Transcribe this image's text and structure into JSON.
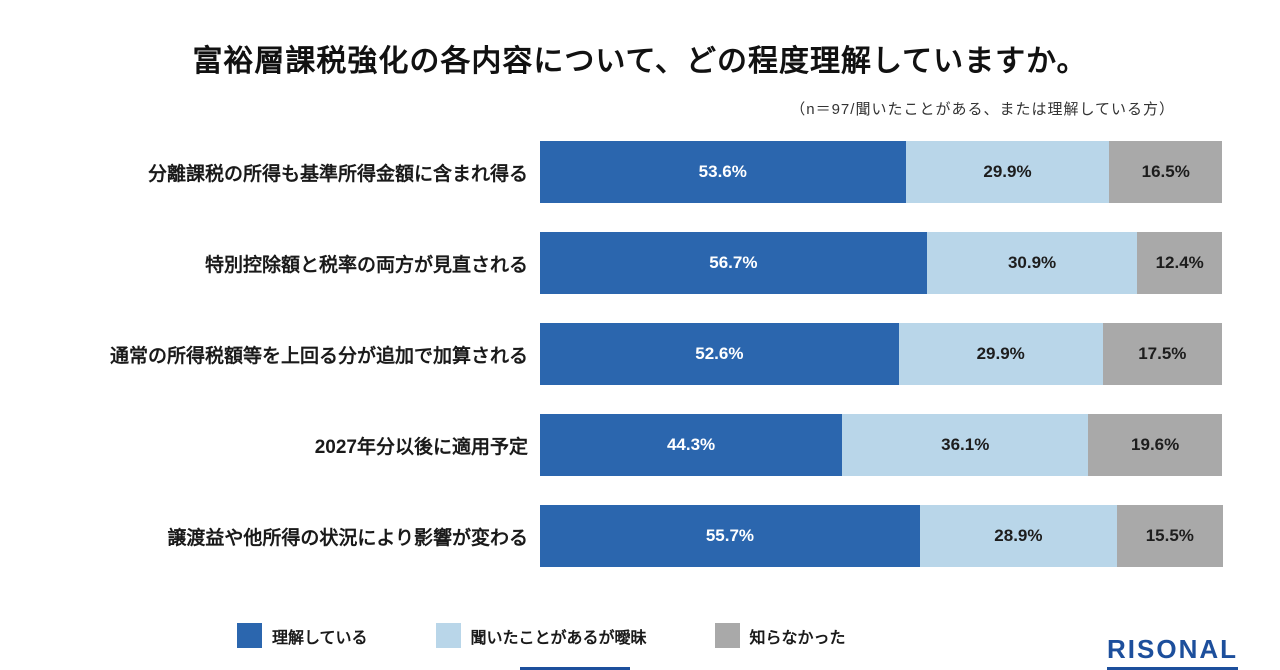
{
  "title": "富裕層課税強化の各内容について、どの程度理解していますか。",
  "subtitle": "（n＝97/聞いたことがある、または理解している方）",
  "legend": [
    {
      "label": "理解している",
      "color": "#2b66ae"
    },
    {
      "label": "聞いたことがあるが曖昧",
      "color": "#b9d6e9"
    },
    {
      "label": "知らなかった",
      "color": "#a9a9a9"
    }
  ],
  "logo": "RISONAL",
  "chart_data": {
    "type": "bar",
    "orientation": "horizontal-stacked",
    "title": "富裕層課税強化の各内容について、どの程度理解していますか。",
    "subtitle": "（n＝97/聞いたことがある、または理解している方）",
    "value_format": "percent",
    "xlim": [
      0,
      100
    ],
    "legend_position": "bottom",
    "categories": [
      "分離課税の所得も基準所得金額に含まれ得る",
      "特別控除額と税率の両方が見直される",
      "通常の所得税額等を上回る分が追加で加算される",
      "2027年分以後に適用予定",
      "譲渡益や他所得の状況により影響が変わる"
    ],
    "series": [
      {
        "name": "理解している",
        "color": "#2b66ae",
        "values": [
          53.6,
          56.7,
          52.6,
          44.3,
          55.7
        ]
      },
      {
        "name": "聞いたことがあるが曖昧",
        "color": "#b9d6e9",
        "values": [
          29.9,
          30.9,
          29.9,
          36.1,
          28.9
        ]
      },
      {
        "name": "知らなかった",
        "color": "#a9a9a9",
        "values": [
          16.5,
          12.4,
          17.5,
          19.6,
          15.5
        ]
      }
    ]
  }
}
